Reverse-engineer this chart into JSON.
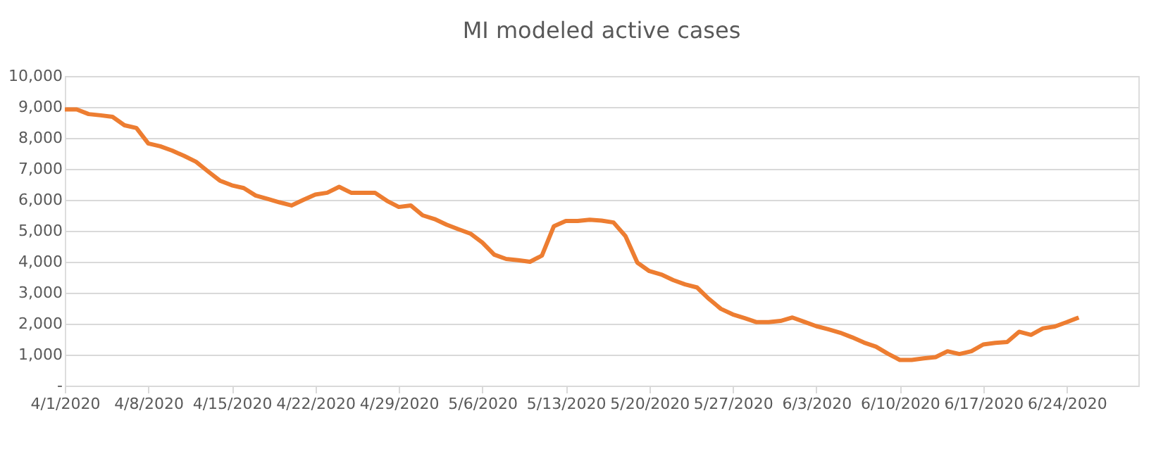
{
  "chart_data": {
    "type": "line",
    "title": "MI modeled active cases",
    "x": [
      "2020-04-01",
      "2020-04-02",
      "2020-04-03",
      "2020-04-04",
      "2020-04-05",
      "2020-04-06",
      "2020-04-07",
      "2020-04-08",
      "2020-04-09",
      "2020-04-10",
      "2020-04-11",
      "2020-04-12",
      "2020-04-13",
      "2020-04-14",
      "2020-04-15",
      "2020-04-16",
      "2020-04-17",
      "2020-04-18",
      "2020-04-19",
      "2020-04-20",
      "2020-04-21",
      "2020-04-22",
      "2020-04-23",
      "2020-04-24",
      "2020-04-25",
      "2020-04-26",
      "2020-04-27",
      "2020-04-28",
      "2020-04-29",
      "2020-04-30",
      "2020-05-01",
      "2020-05-02",
      "2020-05-03",
      "2020-05-04",
      "2020-05-05",
      "2020-05-06",
      "2020-05-07",
      "2020-05-08",
      "2020-05-09",
      "2020-05-10",
      "2020-05-11",
      "2020-05-12",
      "2020-05-13",
      "2020-05-14",
      "2020-05-15",
      "2020-05-16",
      "2020-05-17",
      "2020-05-18",
      "2020-05-19",
      "2020-05-20",
      "2020-05-21",
      "2020-05-22",
      "2020-05-23",
      "2020-05-24",
      "2020-05-25",
      "2020-05-26",
      "2020-05-27",
      "2020-05-28",
      "2020-05-29",
      "2020-05-30",
      "2020-05-31",
      "2020-06-01",
      "2020-06-02",
      "2020-06-03",
      "2020-06-04",
      "2020-06-05",
      "2020-06-06",
      "2020-06-07",
      "2020-06-08",
      "2020-06-09",
      "2020-06-10",
      "2020-06-11",
      "2020-06-12",
      "2020-06-13",
      "2020-06-14",
      "2020-06-15",
      "2020-06-16",
      "2020-06-17",
      "2020-06-18",
      "2020-06-19",
      "2020-06-20",
      "2020-06-21",
      "2020-06-22",
      "2020-06-23",
      "2020-06-24",
      "2020-06-25"
    ],
    "series": [
      {
        "color": "#ed7d31",
        "values": [
          8920,
          8920,
          8770,
          8730,
          8680,
          8410,
          8320,
          7820,
          7730,
          7590,
          7420,
          7230,
          6920,
          6620,
          6470,
          6380,
          6140,
          6030,
          5920,
          5820,
          6000,
          6170,
          6230,
          6420,
          6230,
          6230,
          6230,
          5970,
          5770,
          5820,
          5500,
          5380,
          5200,
          5050,
          4910,
          4620,
          4230,
          4090,
          4050,
          4000,
          4200,
          5150,
          5320,
          5320,
          5360,
          5330,
          5270,
          4830,
          3970,
          3700,
          3590,
          3410,
          3270,
          3170,
          2800,
          2480,
          2300,
          2180,
          2050,
          2050,
          2090,
          2200,
          2060,
          1920,
          1820,
          1710,
          1560,
          1390,
          1260,
          1030,
          830,
          830,
          880,
          920,
          1110,
          1020,
          1110,
          1330,
          1380,
          1410,
          1740,
          1640,
          1850,
          1910,
          2050,
          2200
        ]
      }
    ],
    "xlim": [
      "2020-04-01",
      "2020-06-30"
    ],
    "xticks": [
      {
        "value": "2020-04-01",
        "label": "4/1/2020"
      },
      {
        "value": "2020-04-08",
        "label": "4/8/2020"
      },
      {
        "value": "2020-04-15",
        "label": "4/15/2020"
      },
      {
        "value": "2020-04-22",
        "label": "4/22/2020"
      },
      {
        "value": "2020-04-29",
        "label": "4/29/2020"
      },
      {
        "value": "2020-05-06",
        "label": "5/6/2020"
      },
      {
        "value": "2020-05-13",
        "label": "5/13/2020"
      },
      {
        "value": "2020-05-20",
        "label": "5/20/2020"
      },
      {
        "value": "2020-05-27",
        "label": "5/27/2020"
      },
      {
        "value": "2020-06-03",
        "label": "6/3/2020"
      },
      {
        "value": "2020-06-10",
        "label": "6/10/2020"
      },
      {
        "value": "2020-06-17",
        "label": "6/17/2020"
      },
      {
        "value": "2020-06-24",
        "label": "6/24/2020"
      }
    ],
    "ylim": [
      0,
      10000
    ],
    "yticks": [
      {
        "value": 0,
        "label": "-"
      },
      {
        "value": 1000,
        "label": "1,000"
      },
      {
        "value": 2000,
        "label": "2,000"
      },
      {
        "value": 3000,
        "label": "3,000"
      },
      {
        "value": 4000,
        "label": "4,000"
      },
      {
        "value": 5000,
        "label": "5,000"
      },
      {
        "value": 6000,
        "label": "6,000"
      },
      {
        "value": 7000,
        "label": "7,000"
      },
      {
        "value": 8000,
        "label": "8,000"
      },
      {
        "value": 9000,
        "label": "9,000"
      },
      {
        "value": 10000,
        "label": "10,000"
      }
    ],
    "grid": "y",
    "legend": false,
    "marker": "none",
    "line_style": "solid"
  }
}
